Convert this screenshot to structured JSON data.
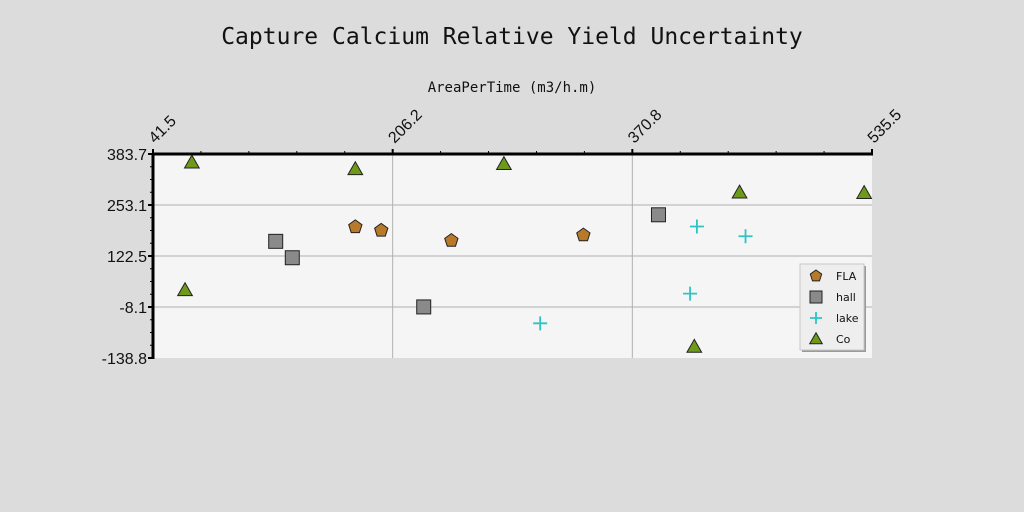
{
  "chart_data": {
    "type": "scatter",
    "title": "Capture Calcium Relative Yield Uncertainty",
    "xlabel": "AreaPerTime (m3/h.m)",
    "ylabel": "",
    "xlim": [
      41.5,
      535.5
    ],
    "ylim": [
      -138.8,
      383.7
    ],
    "xticks": [
      "41.5",
      "206.2",
      "370.8",
      "535.5"
    ],
    "yticks": [
      "383.7",
      "253.1",
      "122.5",
      "-8.1",
      "-138.8"
    ],
    "x_axis_position": "top",
    "grid": true,
    "legend_position": "right",
    "series": [
      {
        "name": "FLA",
        "marker": "pentagon",
        "color": "#b87a2a",
        "points": [
          [
            180.5,
            197
          ],
          [
            198.3,
            188
          ],
          [
            246.5,
            162
          ],
          [
            337.2,
            176
          ]
        ]
      },
      {
        "name": "hall",
        "marker": "square",
        "color": "#8a8a8a",
        "points": [
          [
            125.8,
            160
          ],
          [
            137.2,
            118
          ],
          [
            227.5,
            -8
          ],
          [
            388.8,
            228
          ]
        ]
      },
      {
        "name": "lake",
        "marker": "plus",
        "color": "#2ec4c4",
        "points": [
          [
            307.5,
            -50
          ],
          [
            410.5,
            26
          ],
          [
            415.2,
            198
          ],
          [
            448.6,
            173
          ]
        ]
      },
      {
        "name": "Co",
        "marker": "triangle",
        "color": "#6e9a1a",
        "points": [
          [
            63.5,
            35
          ],
          [
            68.2,
            362
          ],
          [
            180.5,
            345
          ],
          [
            282.6,
            358
          ],
          [
            413.4,
            -110
          ],
          [
            444.5,
            285
          ],
          [
            530.1,
            284
          ]
        ]
      }
    ]
  }
}
